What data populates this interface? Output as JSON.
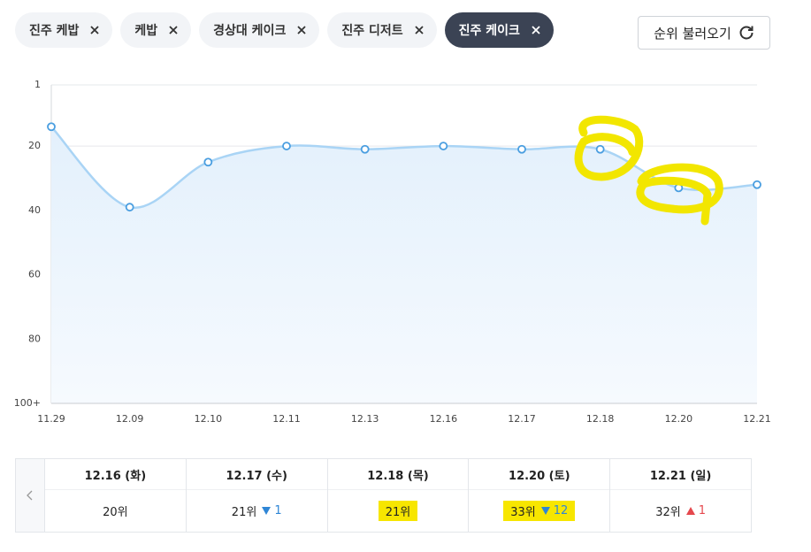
{
  "tabs": [
    {
      "label": "진주 케밥",
      "selected": false
    },
    {
      "label": "케밥",
      "selected": false
    },
    {
      "label": "경상대 케이크",
      "selected": false
    },
    {
      "label": "진주 디저트",
      "selected": false
    },
    {
      "label": "진주 케이크",
      "selected": true
    }
  ],
  "reload_button": "순위 불러오기",
  "chart_data": {
    "type": "line",
    "categories": [
      "11.29",
      "12.09",
      "12.10",
      "12.11",
      "12.13",
      "12.16",
      "12.17",
      "12.18",
      "12.20",
      "12.21"
    ],
    "values": [
      14,
      39,
      25,
      20,
      21,
      20,
      21,
      21,
      33,
      32
    ],
    "color": "#a9d4f5",
    "point_color": "#4a9ee0",
    "ylim": [
      100,
      1
    ],
    "yticks": [
      1,
      20,
      40,
      60,
      80,
      {
        "value": 100,
        "label": "100+"
      }
    ],
    "grid": true
  },
  "table": {
    "columns": [
      {
        "date": "12.16 (화)",
        "rank": "20위"
      },
      {
        "date": "12.17 (수)",
        "rank": "21위",
        "change": {
          "direction": "down",
          "value": 1
        }
      },
      {
        "date": "12.18 (목)",
        "rank": "21위",
        "highlight": true
      },
      {
        "date": "12.20 (토)",
        "rank": "33위",
        "change": {
          "direction": "down",
          "value": 12
        },
        "highlight": true
      },
      {
        "date": "12.21 (일)",
        "rank": "32위",
        "change": {
          "direction": "up",
          "value": 1
        }
      }
    ]
  }
}
